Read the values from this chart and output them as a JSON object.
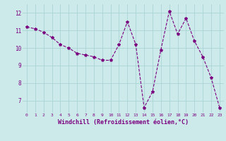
{
  "x": [
    0,
    1,
    2,
    3,
    4,
    5,
    6,
    7,
    8,
    9,
    10,
    11,
    12,
    13,
    14,
    15,
    16,
    17,
    18,
    19,
    20,
    21,
    22,
    23
  ],
  "y": [
    11.2,
    11.1,
    10.9,
    10.6,
    10.2,
    10.0,
    9.7,
    9.6,
    9.5,
    9.3,
    9.3,
    10.2,
    11.5,
    10.2,
    6.6,
    7.5,
    9.9,
    12.1,
    10.8,
    11.7,
    10.4,
    9.5,
    8.3,
    6.6
  ],
  "line_color": "#7B0080",
  "marker": "*",
  "markersize": 3,
  "linewidth": 0.8,
  "bg_color": "#cceaea",
  "grid_color": "#aad4d4",
  "xlabel": "Windchill (Refroidissement éolien,°C)",
  "xlabel_fontsize": 6,
  "ylabel_ticks": [
    7,
    8,
    9,
    10,
    11,
    12
  ],
  "xlim": [
    -0.5,
    23.5
  ],
  "ylim": [
    6.3,
    12.5
  ],
  "xtick_fontsize": 4.5,
  "ytick_fontsize": 5.5
}
